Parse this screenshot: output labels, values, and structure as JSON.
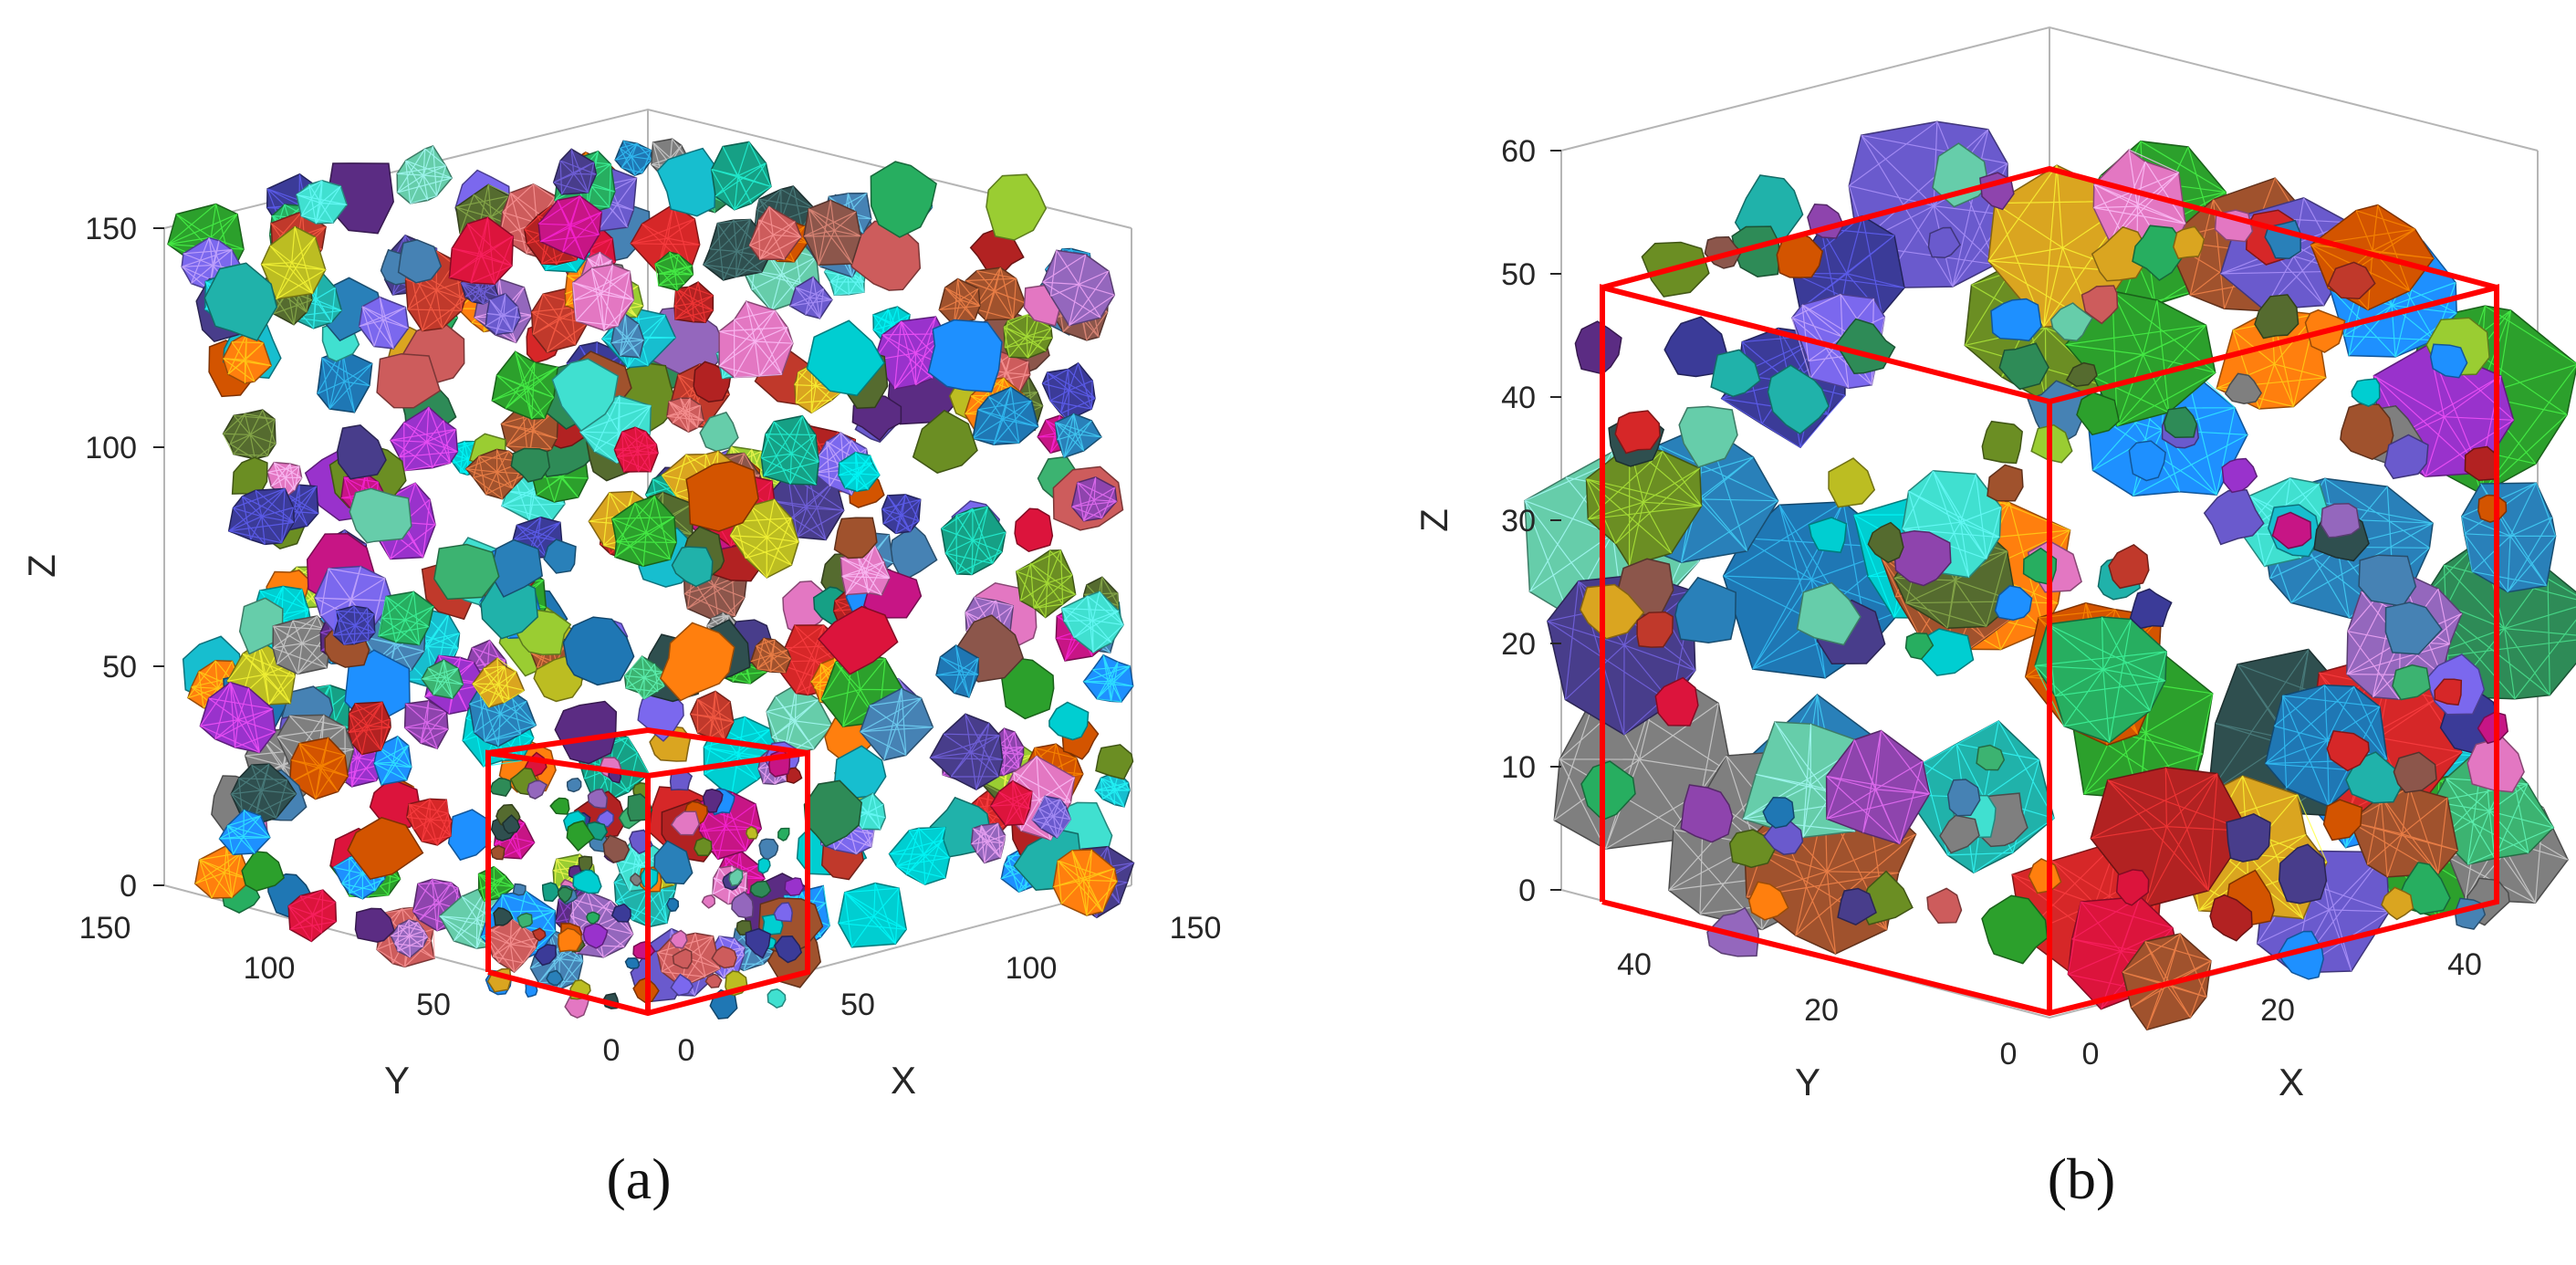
{
  "panel_a": {
    "caption": "(a)",
    "axes": {
      "z_label": "Z",
      "y_label": "Y",
      "x_label": "X",
      "z_ticks": [
        "0",
        "50",
        "100",
        "150"
      ],
      "y_ticks": [
        "150",
        "100",
        "50",
        "0"
      ],
      "x_ticks": [
        "0",
        "50",
        "100",
        "150"
      ]
    },
    "particle_count_shown": 380,
    "highlight_box_color": "#ff0000"
  },
  "panel_b": {
    "caption": "(b)",
    "axes": {
      "z_label": "Z",
      "y_label": "Y",
      "x_label": "X",
      "z_ticks": [
        "0",
        "10",
        "20",
        "30",
        "40",
        "50",
        "60"
      ],
      "y_ticks": [
        "40",
        "20",
        "0"
      ],
      "x_ticks": [
        "0",
        "20",
        "40"
      ]
    },
    "particle_count_shown": 170,
    "highlight_box_color": "#ff0000"
  }
}
